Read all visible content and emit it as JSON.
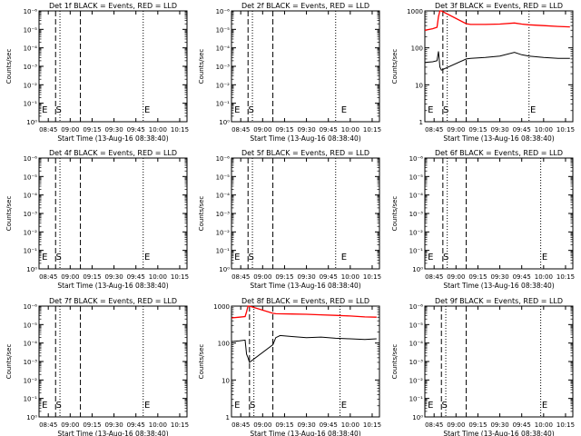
{
  "figure": {
    "xaxis_title": "Start Time (13-Aug-16 08:38:40)",
    "yaxis_title": "Counts/sec",
    "x_ticks": [
      "08:45",
      "09:00",
      "09:15",
      "09:30",
      "09:45",
      "10:00",
      "10:15"
    ],
    "y_ticks_small": [
      "10⁰",
      "10⁻¹",
      "10⁻²",
      "10⁻³",
      "10⁻⁴",
      "10⁻⁵",
      "10⁻⁶"
    ],
    "y_ticks_large": [
      "1",
      "10",
      "100",
      "1000"
    ],
    "colors": {
      "events": "#000000",
      "lld": "#ff0000"
    }
  },
  "chart_data": [
    {
      "type": "line",
      "detector": "1f",
      "title": "Det 1f BLACK = Events, RED = LLD",
      "yscale": "log",
      "ylim": [
        1e-06,
        1
      ],
      "xlim": [
        "08:38:40",
        "10:20:00"
      ],
      "markers": {
        "E1": "08:40",
        "S": "08:52",
        "E2": "09:52"
      },
      "dashed_lines": [
        "08:50",
        "09:07"
      ],
      "dotted_lines": [
        "08:53",
        "09:50"
      ],
      "series": []
    },
    {
      "type": "line",
      "detector": "2f",
      "title": "Det 2f BLACK = Events, RED = LLD",
      "yscale": "log",
      "ylim": [
        1e-06,
        1
      ],
      "xlim": [
        "08:38:40",
        "10:20:00"
      ],
      "markers": {
        "E1": "08:40",
        "S": "08:52",
        "E2": "09:55"
      },
      "dashed_lines": [
        "08:50",
        "09:07"
      ],
      "dotted_lines": [
        "08:53",
        "09:50"
      ],
      "series": []
    },
    {
      "type": "line",
      "detector": "3f",
      "title": "Det 3f BLACK = Events, RED = LLD",
      "yscale": "log",
      "ylim": [
        1,
        1000
      ],
      "xlim": [
        "08:38:40",
        "10:20:00"
      ],
      "markers": {
        "E1": "08:40",
        "S": "08:53",
        "E2": "09:52"
      },
      "dashed_lines": [
        "08:51",
        "09:07"
      ],
      "dotted_lines": [
        "08:54",
        "09:50"
      ],
      "series": [
        {
          "name": "LLD",
          "color": "#ff0000",
          "x": [
            "08:38:40",
            "08:44",
            "08:47",
            "08:48",
            "08:49",
            "08:50",
            "09:07",
            "09:10",
            "09:20",
            "09:30",
            "09:40",
            "09:45",
            "09:50",
            "10:00",
            "10:10",
            "10:18"
          ],
          "y": [
            300,
            330,
            360,
            700,
            1000,
            1000,
            450,
            430,
            430,
            440,
            470,
            440,
            420,
            400,
            380,
            370
          ]
        },
        {
          "name": "Events",
          "color": "#000000",
          "x": [
            "08:38:40",
            "08:44",
            "08:47",
            "08:48",
            "08:49",
            "08:50",
            "09:07",
            "09:10",
            "09:20",
            "09:30",
            "09:40",
            "09:45",
            "09:50",
            "10:00",
            "10:10",
            "10:18"
          ],
          "y": [
            40,
            42,
            45,
            80,
            30,
            25,
            50,
            52,
            55,
            60,
            75,
            65,
            60,
            55,
            52,
            52
          ]
        }
      ]
    },
    {
      "type": "line",
      "detector": "4f",
      "title": "Det 4f BLACK = Events, RED = LLD",
      "yscale": "log",
      "ylim": [
        1e-06,
        1
      ],
      "xlim": [
        "08:38:40",
        "10:20:00"
      ],
      "markers": {
        "E1": "08:40",
        "S": "08:52",
        "E2": "09:52"
      },
      "dashed_lines": [
        "08:50",
        "09:07"
      ],
      "dotted_lines": [
        "08:53",
        "09:50"
      ],
      "series": []
    },
    {
      "type": "line",
      "detector": "5f",
      "title": "Det 5f BLACK = Events, RED = LLD",
      "yscale": "log",
      "ylim": [
        1e-06,
        1
      ],
      "xlim": [
        "08:38:40",
        "10:20:00"
      ],
      "markers": {
        "E1": "08:40",
        "S": "08:52",
        "E2": "09:55"
      },
      "dashed_lines": [
        "08:50",
        "09:07"
      ],
      "dotted_lines": [
        "08:53",
        "09:50"
      ],
      "series": []
    },
    {
      "type": "line",
      "detector": "6f",
      "title": "Det 6f BLACK = Events, RED = LLD",
      "yscale": "log",
      "ylim": [
        1e-06,
        1
      ],
      "xlim": [
        "08:38:40",
        "10:20:00"
      ],
      "markers": {
        "E1": "08:40",
        "S": "08:53",
        "E2": "10:00"
      },
      "dashed_lines": [
        "08:51",
        "09:07"
      ],
      "dotted_lines": [
        "08:54",
        "09:58"
      ],
      "series": []
    },
    {
      "type": "line",
      "detector": "7f",
      "title": "Det 7f BLACK = Events, RED = LLD",
      "yscale": "log",
      "ylim": [
        1e-06,
        1
      ],
      "xlim": [
        "08:38:40",
        "10:20:00"
      ],
      "markers": {
        "E1": "08:40",
        "S": "08:52",
        "E2": "09:52"
      },
      "dashed_lines": [
        "08:50",
        "09:07"
      ],
      "dotted_lines": [
        "08:53",
        "09:50"
      ],
      "series": []
    },
    {
      "type": "line",
      "detector": "8f",
      "title": "Det 8f BLACK = Events, RED = LLD",
      "yscale": "log",
      "ylim": [
        1,
        1000
      ],
      "xlim": [
        "08:38:40",
        "10:20:00"
      ],
      "markers": {
        "E1": "08:40",
        "S": "08:53",
        "E2": "09:55"
      },
      "dashed_lines": [
        "08:51",
        "09:07"
      ],
      "dotted_lines": [
        "08:54",
        "09:53"
      ],
      "series": [
        {
          "name": "LLD",
          "color": "#ff0000",
          "x": [
            "08:38:40",
            "08:44",
            "08:48",
            "08:49",
            "08:50",
            "08:51",
            "09:07",
            "09:09",
            "09:20",
            "09:30",
            "09:40",
            "09:50",
            "10:00",
            "10:10",
            "10:18"
          ],
          "y": [
            480,
            500,
            520,
            700,
            1000,
            1000,
            640,
            620,
            610,
            600,
            580,
            560,
            540,
            510,
            500
          ]
        },
        {
          "name": "Events",
          "color": "#000000",
          "x": [
            "08:38:40",
            "08:44",
            "08:48",
            "08:49",
            "08:50",
            "08:51",
            "09:07",
            "09:09",
            "09:12",
            "09:20",
            "09:30",
            "09:40",
            "09:50",
            "10:00",
            "10:10",
            "10:18"
          ],
          "y": [
            110,
            115,
            120,
            50,
            40,
            30,
            90,
            140,
            160,
            150,
            140,
            145,
            135,
            130,
            125,
            130
          ]
        }
      ]
    },
    {
      "type": "line",
      "detector": "9f",
      "title": "Det 9f BLACK = Events, RED = LLD",
      "yscale": "log",
      "ylim": [
        1e-06,
        1
      ],
      "xlim": [
        "08:38:40",
        "10:20:00"
      ],
      "markers": {
        "E1": "08:40",
        "S": "08:52",
        "E2": "10:00"
      },
      "dashed_lines": [
        "08:50",
        "09:07"
      ],
      "dotted_lines": [
        "08:53",
        "09:58"
      ],
      "series": []
    }
  ]
}
